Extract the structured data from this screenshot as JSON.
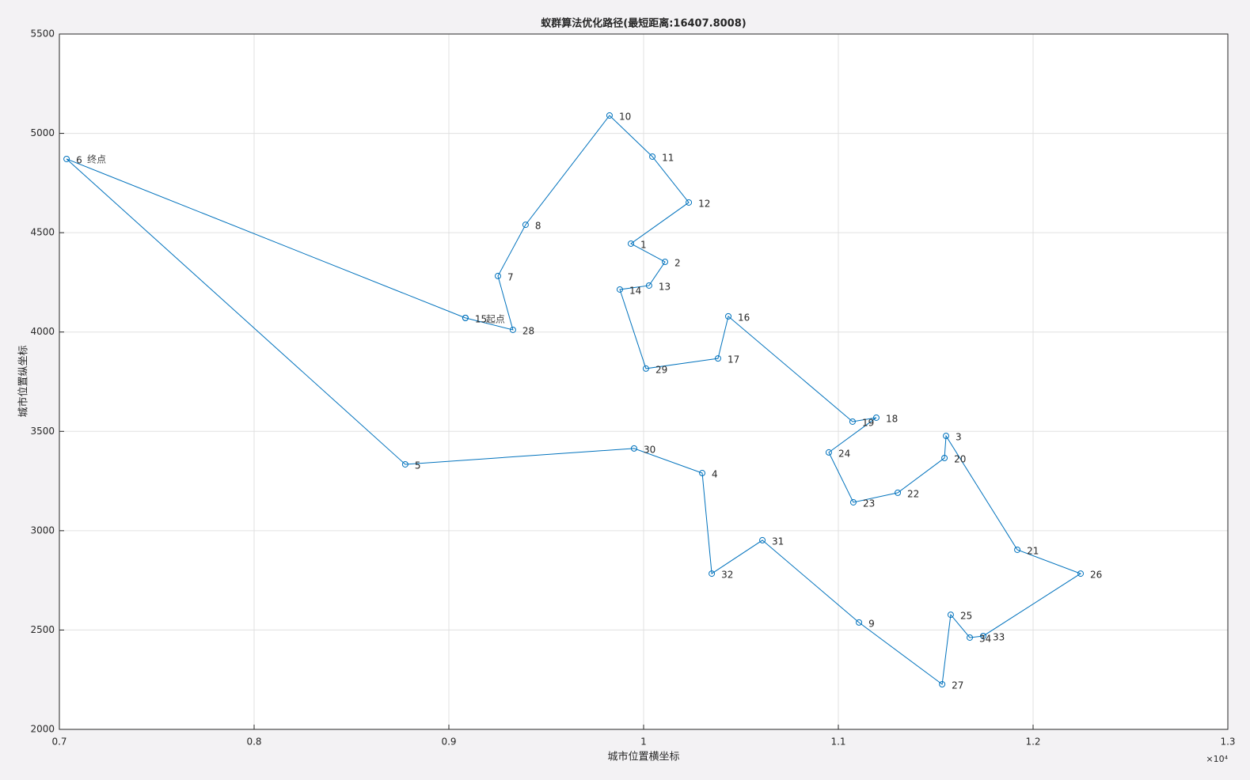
{
  "chart_data": {
    "type": "line",
    "title": "蚁群算法优化路径(最短距离:16407.8008)",
    "xlabel": "城市位置横坐标",
    "ylabel": "城市位置纵坐标",
    "x_exponent_label": "×10⁴",
    "color": "#0072bd",
    "grid": true,
    "marker": "circle",
    "start_label": "起点",
    "end_label": "终点",
    "point_labels": [
      "15",
      "28",
      "7",
      "8",
      "10",
      "11",
      "12",
      "1",
      "2",
      "13",
      "14",
      "29",
      "17",
      "16",
      "19",
      "18",
      "24",
      "23",
      "22",
      "20",
      "3",
      "21",
      "26",
      "33",
      "34",
      "25",
      "27",
      "9",
      "31",
      "32",
      "4",
      "30",
      "5",
      "6",
      null
    ],
    "x": [
      9085,
      9329,
      9252,
      9394,
      9825,
      10045,
      10232,
      9935,
      10110,
      10028,
      9878,
      10012,
      10382,
      10435,
      11073,
      11195,
      10951,
      11077,
      11305,
      11545,
      11553,
      11919,
      12244,
      11744,
      11675,
      11577,
      11533,
      11106,
      10610,
      10350,
      10301,
      9951,
      8776,
      7037,
      9085
    ],
    "y": [
      4071,
      4011,
      4282,
      4540,
      5090,
      4883,
      4652,
      4445,
      4353,
      4234,
      4214,
      3816,
      3867,
      4079,
      3549,
      3569,
      3394,
      3143,
      3191,
      3366,
      3477,
      2904,
      2784,
      2470,
      2462,
      2577,
      2227,
      2538,
      2952,
      2784,
      3290,
      3414,
      3334,
      4871,
      4071
    ],
    "xlim": [
      7000,
      13000
    ],
    "xticks": [
      {
        "value": 7000,
        "label": "0.7"
      },
      {
        "value": 8000,
        "label": "0.8"
      },
      {
        "value": 9000,
        "label": "0.9"
      },
      {
        "value": 10000,
        "label": "1"
      },
      {
        "value": 11000,
        "label": "1.1"
      },
      {
        "value": 12000,
        "label": "1.2"
      },
      {
        "value": 13000,
        "label": "1.3"
      }
    ],
    "ylim": [
      2000,
      5500
    ],
    "yticks": [
      2000,
      2500,
      3000,
      3500,
      4000,
      4500,
      5000,
      5500
    ]
  }
}
